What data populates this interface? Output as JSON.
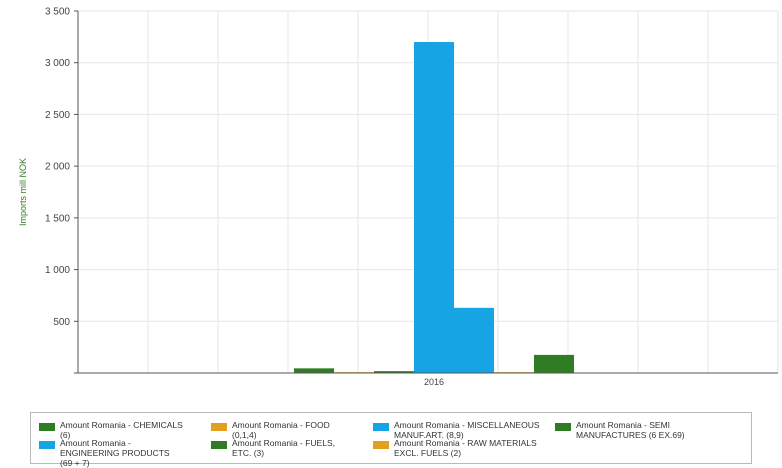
{
  "chart_data": {
    "type": "bar",
    "categories": [
      "2016"
    ],
    "ylabel": "Imports mill NOK",
    "ylim": [
      0,
      3500
    ],
    "yticks": [
      0,
      500,
      1000,
      1500,
      2000,
      2500,
      3000,
      3500
    ],
    "ytick_labels": [
      "",
      "500",
      "1 000",
      "1 500",
      "2 000",
      "2 500",
      "3 000",
      "3 500"
    ],
    "grid": true,
    "legend_position": "bottom",
    "series": [
      {
        "name": "Amount Romania - CHEMICALS (6)",
        "values": [
          45
        ],
        "color": "#2f7c24"
      },
      {
        "name": "Amount Romania - FOOD (0,1,4)",
        "values": [
          8
        ],
        "color": "#e2a01f"
      },
      {
        "name": "Amount Romania - FUELS, ETC. (3)",
        "values": [
          18
        ],
        "color": "#2f7c24"
      },
      {
        "name": "Amount Romania - ENGINEERING PRODUCTS (69 + 7)",
        "values": [
          3200
        ],
        "color": "#16a4e4"
      },
      {
        "name": "Amount Romania - MISCELLANEOUS MANUF.ART. (8,9)",
        "values": [
          630
        ],
        "color": "#16a4e4"
      },
      {
        "name": "Amount Romania - RAW MATERIALS EXCL. FUELS (2)",
        "values": [
          8
        ],
        "color": "#e2a01f"
      },
      {
        "name": "Amount Romania - SEMI MANUFACTURES (6 EX.69)",
        "values": [
          175
        ],
        "color": "#2f7c24"
      }
    ]
  },
  "legend": {
    "items": [
      {
        "label": "Amount Romania - CHEMICALS (6)",
        "color": "#2f7c24"
      },
      {
        "label": "Amount Romania - ENGINEERING PRODUCTS (69 + 7)",
        "color": "#16a4e4"
      },
      {
        "label": "Amount Romania - FOOD (0,1,4)",
        "color": "#e2a01f"
      },
      {
        "label": "Amount Romania - FUELS, ETC. (3)",
        "color": "#2f7c24"
      },
      {
        "label": "Amount Romania - MISCELLANEOUS MANUF.ART. (8,9)",
        "color": "#16a4e4"
      },
      {
        "label": "Amount Romania - RAW MATERIALS EXCL. FUELS (2)",
        "color": "#e2a01f"
      },
      {
        "label": "Amount Romania - SEMI MANUFACTURES (6 EX.69)",
        "color": "#2f7c24"
      }
    ]
  }
}
